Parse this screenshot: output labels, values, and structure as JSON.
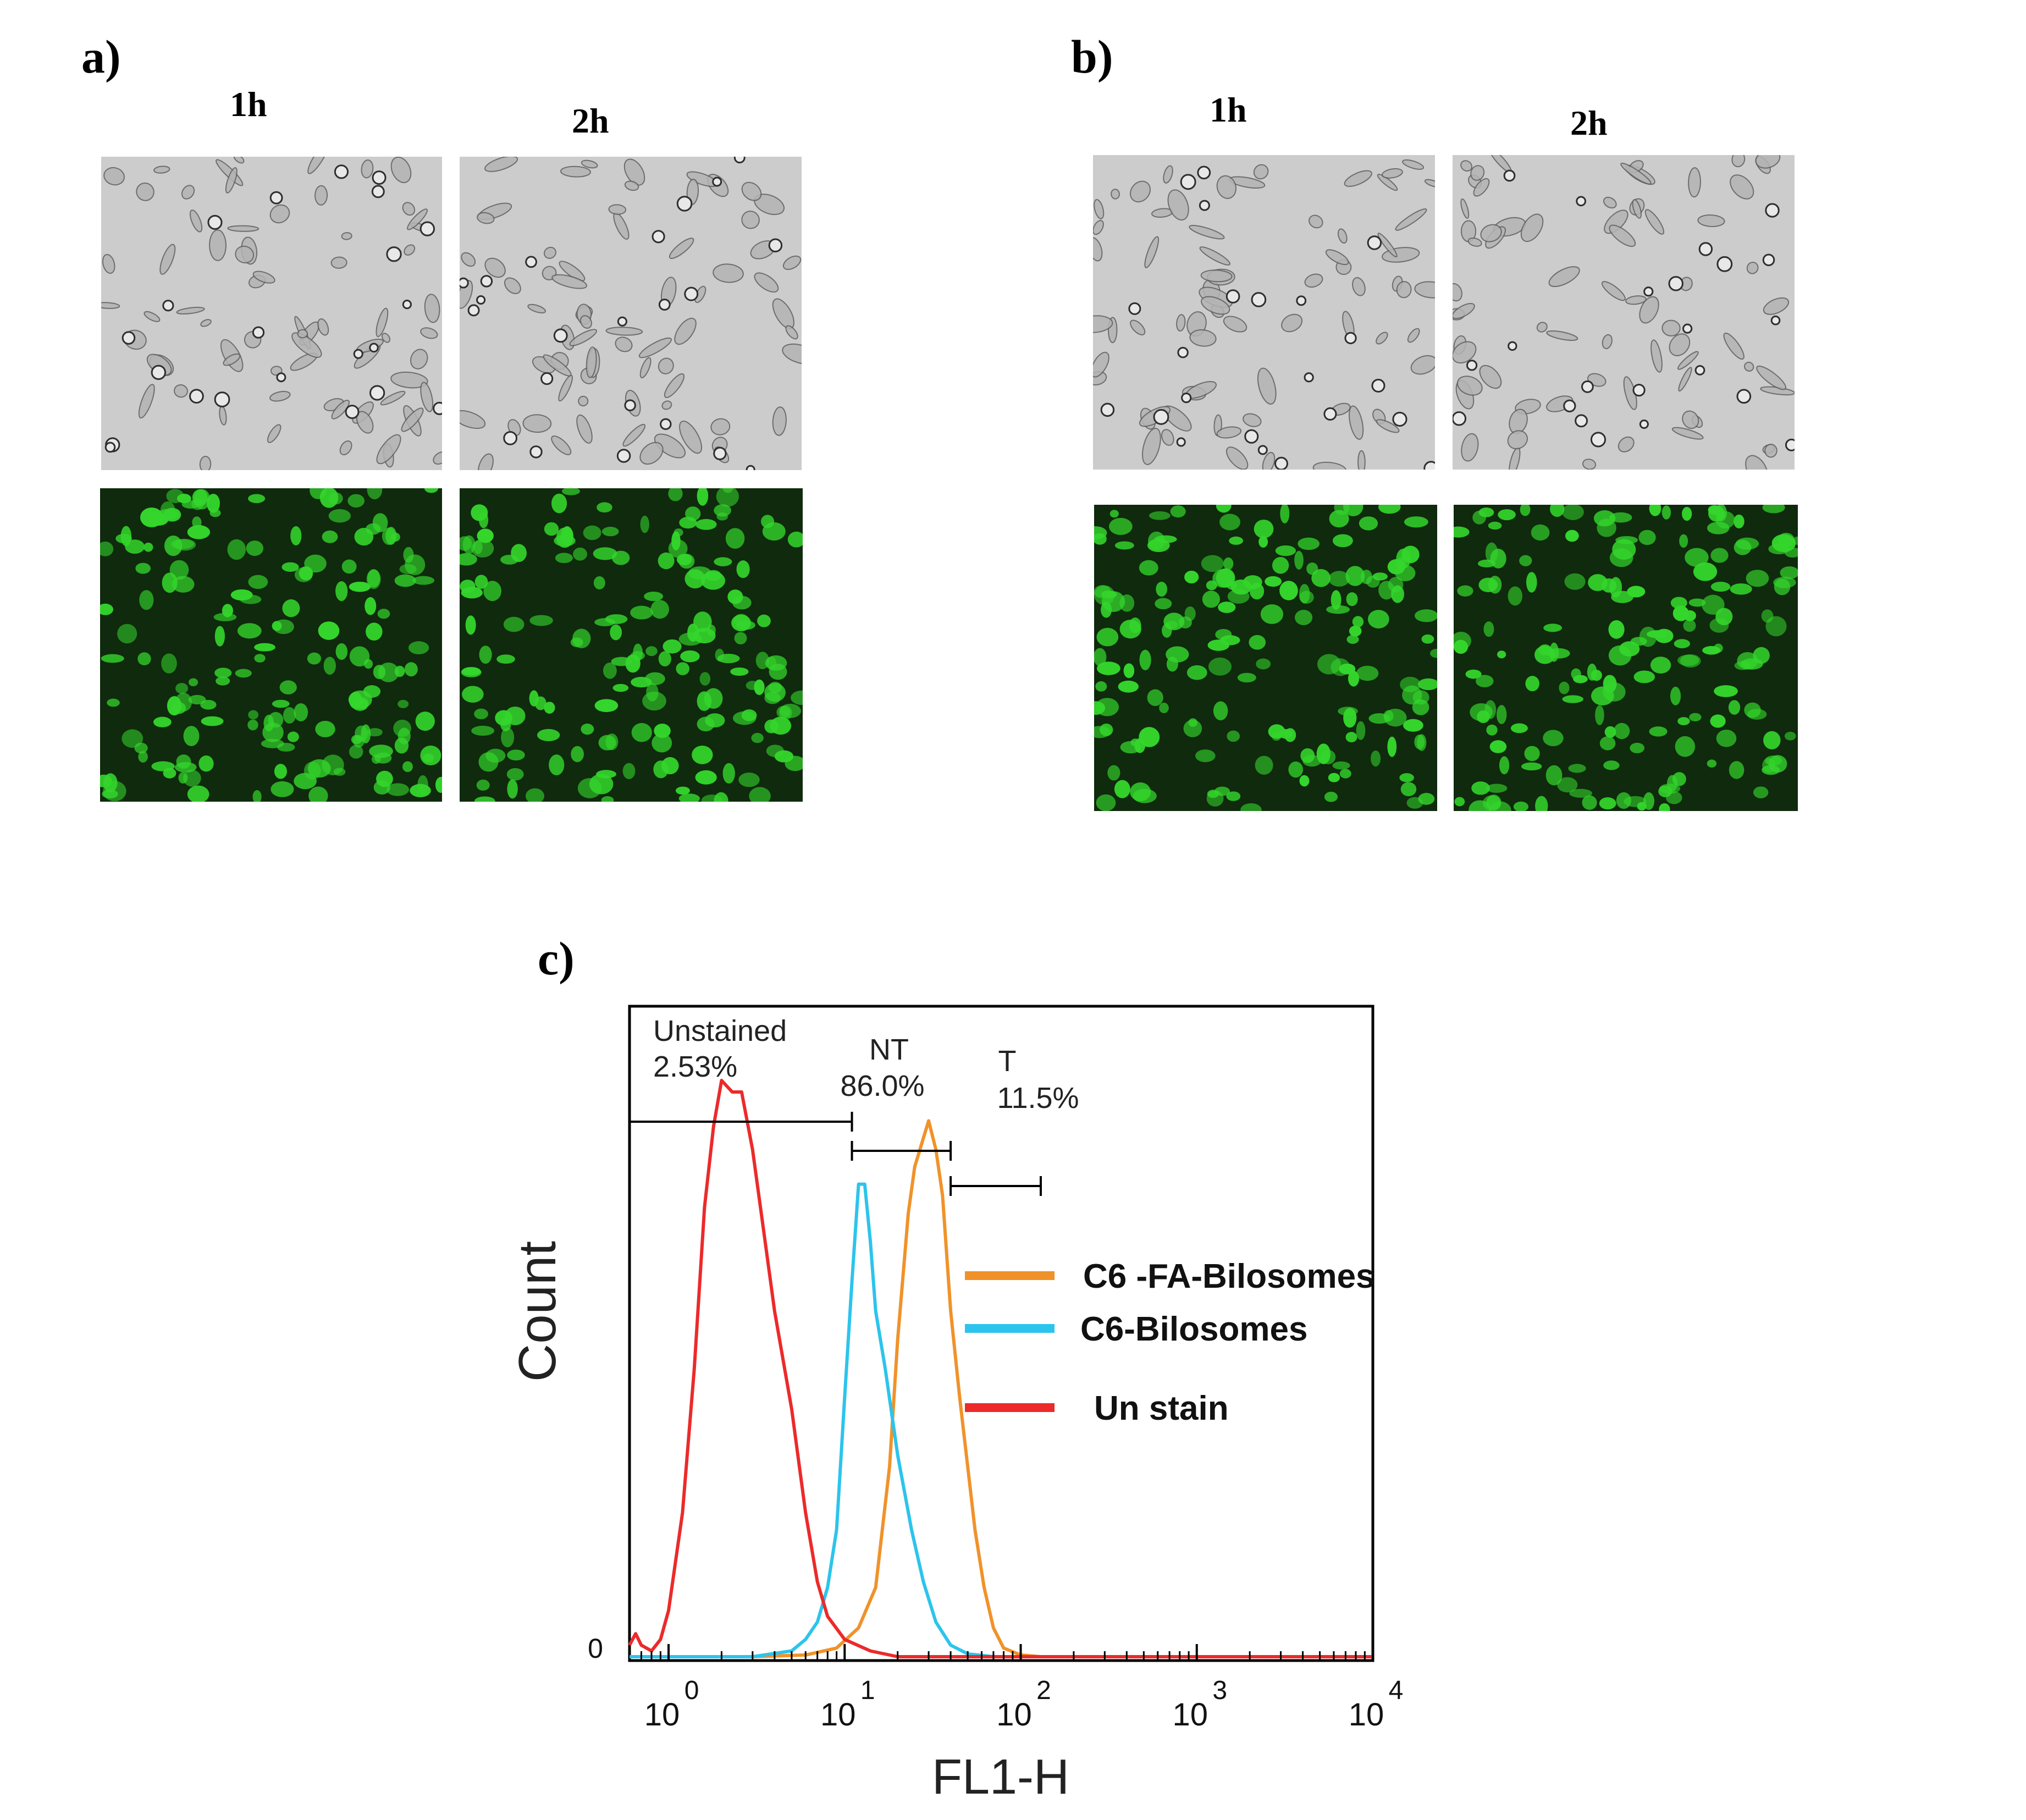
{
  "panels": {
    "a": {
      "label": "a)",
      "time_labels": [
        "1h",
        "2h"
      ],
      "rows": [
        "brightfield",
        "fluorescence"
      ]
    },
    "b": {
      "label": "b)",
      "time_labels": [
        "1h",
        "2h"
      ],
      "rows": [
        "brightfield",
        "fluorescence"
      ]
    },
    "c": {
      "label": "c)"
    }
  },
  "colors": {
    "brightfield_bg": "#c7c7c7",
    "fluorescence_bg": "#0f2a0d",
    "fluorescence_cell": "#34d62c",
    "C6-FA-Bilosomes": "#f0922a",
    "C6-Bilosomes": "#2cc4ec",
    "Un stain": "#ec2a2a"
  },
  "chart_data": {
    "type": "line",
    "xlabel": "FL1-H",
    "ylabel": "Count",
    "x_scale": "log",
    "xlim": [
      0.6,
      10000
    ],
    "x_ticks": [
      "10^0",
      "10^1",
      "10^2",
      "10^3",
      "10^4"
    ],
    "y_ticks": [
      "0"
    ],
    "gates": [
      {
        "name": "Unstained",
        "percent": "2.53%",
        "range": [
          0.6,
          11
        ]
      },
      {
        "name": "NT",
        "percent": "86.0%",
        "range": [
          11,
          40
        ]
      },
      {
        "name": "T",
        "percent": "11.5%",
        "range": [
          40,
          130
        ]
      }
    ],
    "legend": {
      "placement": "center-right"
    },
    "series": [
      {
        "name": "C6 -FA-Bilosomes",
        "color": "#f0922a",
        "points": [
          [
            0.6,
            0
          ],
          [
            1,
            0
          ],
          [
            3,
            0
          ],
          [
            6,
            0.003
          ],
          [
            9,
            0.015
          ],
          [
            12,
            0.05
          ],
          [
            15,
            0.12
          ],
          [
            18,
            0.33
          ],
          [
            20,
            0.55
          ],
          [
            23,
            0.77
          ],
          [
            25,
            0.85
          ],
          [
            28,
            0.9
          ],
          [
            30,
            0.93
          ],
          [
            33,
            0.88
          ],
          [
            36,
            0.8
          ],
          [
            40,
            0.6
          ],
          [
            45,
            0.45
          ],
          [
            50,
            0.33
          ],
          [
            55,
            0.22
          ],
          [
            62,
            0.12
          ],
          [
            70,
            0.05
          ],
          [
            80,
            0.015
          ],
          [
            100,
            0.003
          ],
          [
            130,
            0
          ],
          [
            10000,
            0
          ]
        ]
      },
      {
        "name": "C6-Bilosomes",
        "color": "#2cc4ec",
        "points": [
          [
            0.6,
            0
          ],
          [
            3,
            0
          ],
          [
            5,
            0.01
          ],
          [
            6,
            0.03
          ],
          [
            7,
            0.06
          ],
          [
            8,
            0.12
          ],
          [
            9,
            0.22
          ],
          [
            10,
            0.45
          ],
          [
            11,
            0.65
          ],
          [
            12,
            0.82
          ],
          [
            13,
            0.82
          ],
          [
            14,
            0.72
          ],
          [
            15,
            0.6
          ],
          [
            17,
            0.5
          ],
          [
            20,
            0.35
          ],
          [
            24,
            0.22
          ],
          [
            28,
            0.13
          ],
          [
            33,
            0.06
          ],
          [
            40,
            0.02
          ],
          [
            50,
            0.005
          ],
          [
            70,
            0
          ],
          [
            10000,
            0
          ]
        ]
      },
      {
        "name": "Un stain",
        "color": "#ec2a2a",
        "points": [
          [
            0.6,
            0.02
          ],
          [
            0.65,
            0.04
          ],
          [
            0.7,
            0.02
          ],
          [
            0.8,
            0.01
          ],
          [
            0.9,
            0.03
          ],
          [
            1,
            0.08
          ],
          [
            1.2,
            0.25
          ],
          [
            1.4,
            0.5
          ],
          [
            1.6,
            0.78
          ],
          [
            1.8,
            0.92
          ],
          [
            2,
            1.0
          ],
          [
            2.3,
            0.98
          ],
          [
            2.6,
            0.98
          ],
          [
            3,
            0.88
          ],
          [
            3.5,
            0.73
          ],
          [
            4,
            0.6
          ],
          [
            5,
            0.43
          ],
          [
            6,
            0.25
          ],
          [
            7,
            0.13
          ],
          [
            8,
            0.07
          ],
          [
            10,
            0.03
          ],
          [
            14,
            0.01
          ],
          [
            20,
            0
          ],
          [
            10000,
            0
          ]
        ]
      }
    ]
  }
}
